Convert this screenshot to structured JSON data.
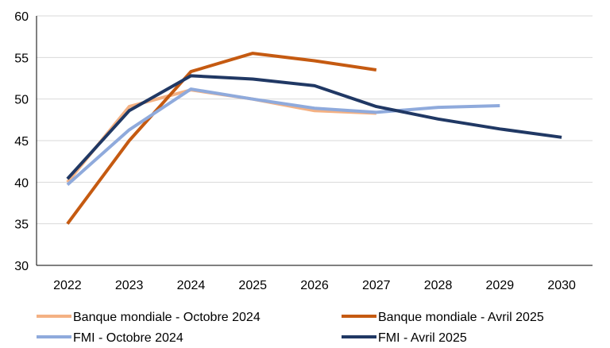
{
  "chart_data": {
    "type": "line",
    "title": "",
    "xlabel": "",
    "ylabel": "",
    "ylim": [
      30,
      60
    ],
    "yticks": [
      30,
      35,
      40,
      45,
      50,
      55,
      60
    ],
    "categories": [
      "2022",
      "2023",
      "2024",
      "2025",
      "2026",
      "2027",
      "2028",
      "2029",
      "2030"
    ],
    "grid": "horizontal",
    "legend_position": "bottom",
    "series": [
      {
        "name": "Banque mondiale - Octobre 2024",
        "color": "#f4b183",
        "values": [
          40.0,
          49.1,
          51.1,
          50.0,
          48.6,
          48.3,
          null,
          null,
          null
        ]
      },
      {
        "name": "Banque mondiale - Avril 2025",
        "color": "#c55a11",
        "values": [
          35.0,
          45.0,
          53.3,
          55.5,
          54.6,
          53.5,
          null,
          null,
          null
        ]
      },
      {
        "name": "FMI - Octobre 2024",
        "color": "#8faadc",
        "values": [
          39.7,
          46.3,
          51.2,
          50.0,
          48.9,
          48.4,
          49.0,
          49.2,
          null
        ]
      },
      {
        "name": "FMI - Avril 2025",
        "color": "#203864",
        "values": [
          40.4,
          48.6,
          52.8,
          52.4,
          51.6,
          49.1,
          47.6,
          46.4,
          45.4
        ]
      }
    ]
  }
}
